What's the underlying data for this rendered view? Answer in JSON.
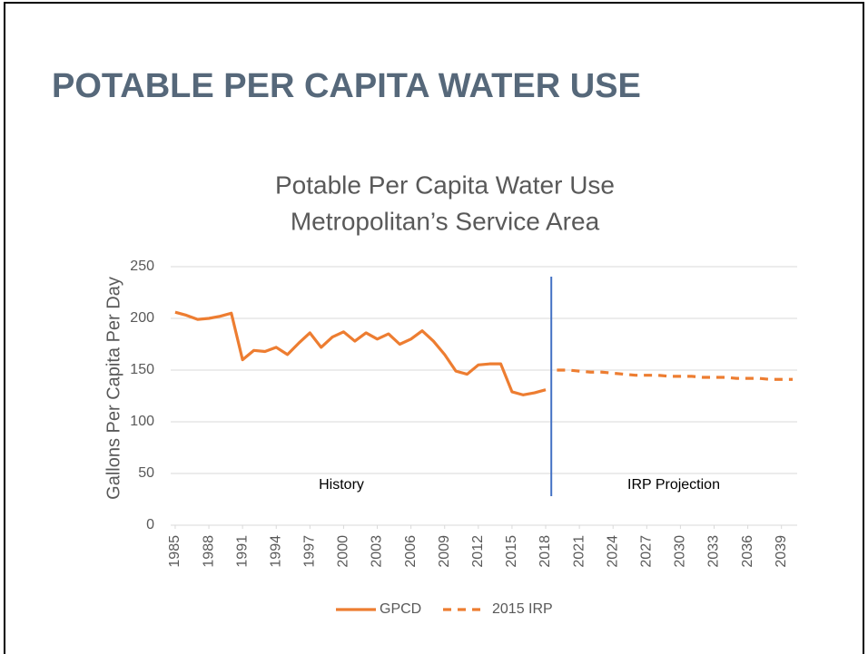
{
  "slide_title": "POTABLE PER CAPITA WATER USE",
  "chart_data": {
    "type": "line",
    "title": "Potable Per Capita Water Use",
    "subtitle": "Metropolitan’s Service Area",
    "ylabel": "Gallons Per Capita Per Day",
    "annotations": [
      "History",
      "IRP Projection"
    ],
    "divider_x": 2018.5,
    "x": [
      1985,
      1986,
      1987,
      1988,
      1989,
      1990,
      1991,
      1992,
      1993,
      1994,
      1995,
      1996,
      1997,
      1998,
      1999,
      2000,
      2001,
      2002,
      2003,
      2004,
      2005,
      2006,
      2007,
      2008,
      2009,
      2010,
      2011,
      2012,
      2013,
      2014,
      2015,
      2016,
      2017,
      2018,
      2019,
      2020,
      2021,
      2022,
      2023,
      2024,
      2025,
      2026,
      2027,
      2028,
      2029,
      2030,
      2031,
      2032,
      2033,
      2034,
      2035,
      2036,
      2037,
      2038,
      2039,
      2040
    ],
    "series": [
      {
        "name": "GPCD",
        "color": "#ed7d31",
        "dashed": false,
        "values": [
          206,
          203,
          199,
          200,
          202,
          205,
          160,
          169,
          168,
          172,
          165,
          176,
          186,
          172,
          182,
          187,
          178,
          186,
          180,
          185,
          175,
          180,
          188,
          178,
          165,
          149,
          146,
          155,
          156,
          156,
          129,
          126,
          128,
          131,
          null,
          null,
          null,
          null,
          null,
          null,
          null,
          null,
          null,
          null,
          null,
          null,
          null,
          null,
          null,
          null,
          null,
          null,
          null,
          null,
          null,
          null
        ]
      },
      {
        "name": "2015 IRP",
        "color": "#ed7d31",
        "dashed": true,
        "values": [
          null,
          null,
          null,
          null,
          null,
          null,
          null,
          null,
          null,
          null,
          null,
          null,
          null,
          null,
          null,
          null,
          null,
          null,
          null,
          null,
          null,
          null,
          null,
          null,
          null,
          null,
          null,
          null,
          null,
          null,
          null,
          null,
          null,
          null,
          150,
          150,
          149,
          148,
          148,
          147,
          146,
          145,
          145,
          145,
          144,
          144,
          144,
          143,
          143,
          143,
          142,
          142,
          142,
          141,
          141,
          141
        ]
      }
    ],
    "divider_color": "#4472c4",
    "xlim": [
      1984.6,
      2040.4
    ],
    "xticks": [
      1985,
      1988,
      1991,
      1994,
      1997,
      2000,
      2003,
      2006,
      2009,
      2012,
      2015,
      2018,
      2021,
      2024,
      2027,
      2030,
      2033,
      2036,
      2039
    ],
    "ylim": [
      0,
      250
    ],
    "yticks": [
      0,
      50,
      100,
      150,
      200,
      250
    ],
    "grid": true
  }
}
